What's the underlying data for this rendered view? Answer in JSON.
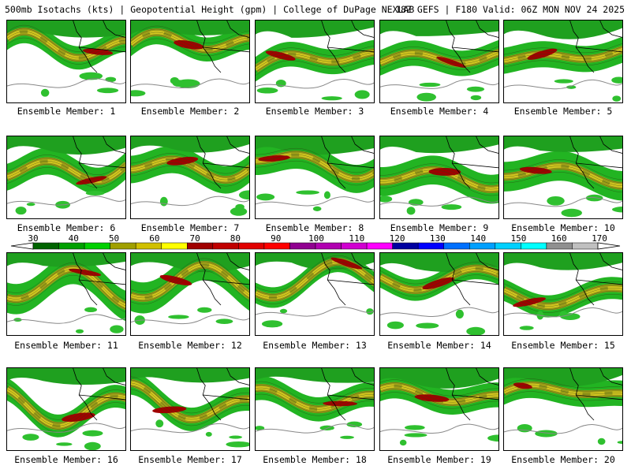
{
  "header": {
    "left": "500mb Isotachs (kts) | Geopotential Height (gpm) | College of DuPage NEXLAB",
    "right": "18Z GEFS | F180 Valid: 06Z MON NOV 24 2025"
  },
  "member_label_prefix": "Ensemble Member: ",
  "members": [
    {
      "label": "Ensemble Member: 1"
    },
    {
      "label": "Ensemble Member: 2"
    },
    {
      "label": "Ensemble Member: 3"
    },
    {
      "label": "Ensemble Member: 4"
    },
    {
      "label": "Ensemble Member: 5"
    },
    {
      "label": "Ensemble Member: 6"
    },
    {
      "label": "Ensemble Member: 7"
    },
    {
      "label": "Ensemble Member: 8"
    },
    {
      "label": "Ensemble Member: 9"
    },
    {
      "label": "Ensemble Member: 10"
    },
    {
      "label": "Ensemble Member: 11"
    },
    {
      "label": "Ensemble Member: 12"
    },
    {
      "label": "Ensemble Member: 13"
    },
    {
      "label": "Ensemble Member: 14"
    },
    {
      "label": "Ensemble Member: 15"
    },
    {
      "label": "Ensemble Member: 16"
    },
    {
      "label": "Ensemble Member: 17"
    },
    {
      "label": "Ensemble Member: 18"
    },
    {
      "label": "Ensemble Member: 19"
    },
    {
      "label": "Ensemble Member: 20"
    }
  ],
  "colorbar": {
    "units": "kts",
    "tick_labels": [
      "30",
      "40",
      "50",
      "60",
      "70",
      "80",
      "90",
      "100",
      "110",
      "120",
      "130",
      "140",
      "150",
      "160",
      "170"
    ],
    "colors": [
      "#006400",
      "#00a000",
      "#00d000",
      "#a0a000",
      "#d0c000",
      "#ffff00",
      "#a00000",
      "#c00000",
      "#e00000",
      "#ff0000",
      "#900090",
      "#b000b0",
      "#d000d0",
      "#ff00ff",
      "#0000a0",
      "#0000ff",
      "#0070ff",
      "#00a0ff",
      "#00d0ff",
      "#00ffff",
      "#909090",
      "#c0c0c0"
    ]
  }
}
